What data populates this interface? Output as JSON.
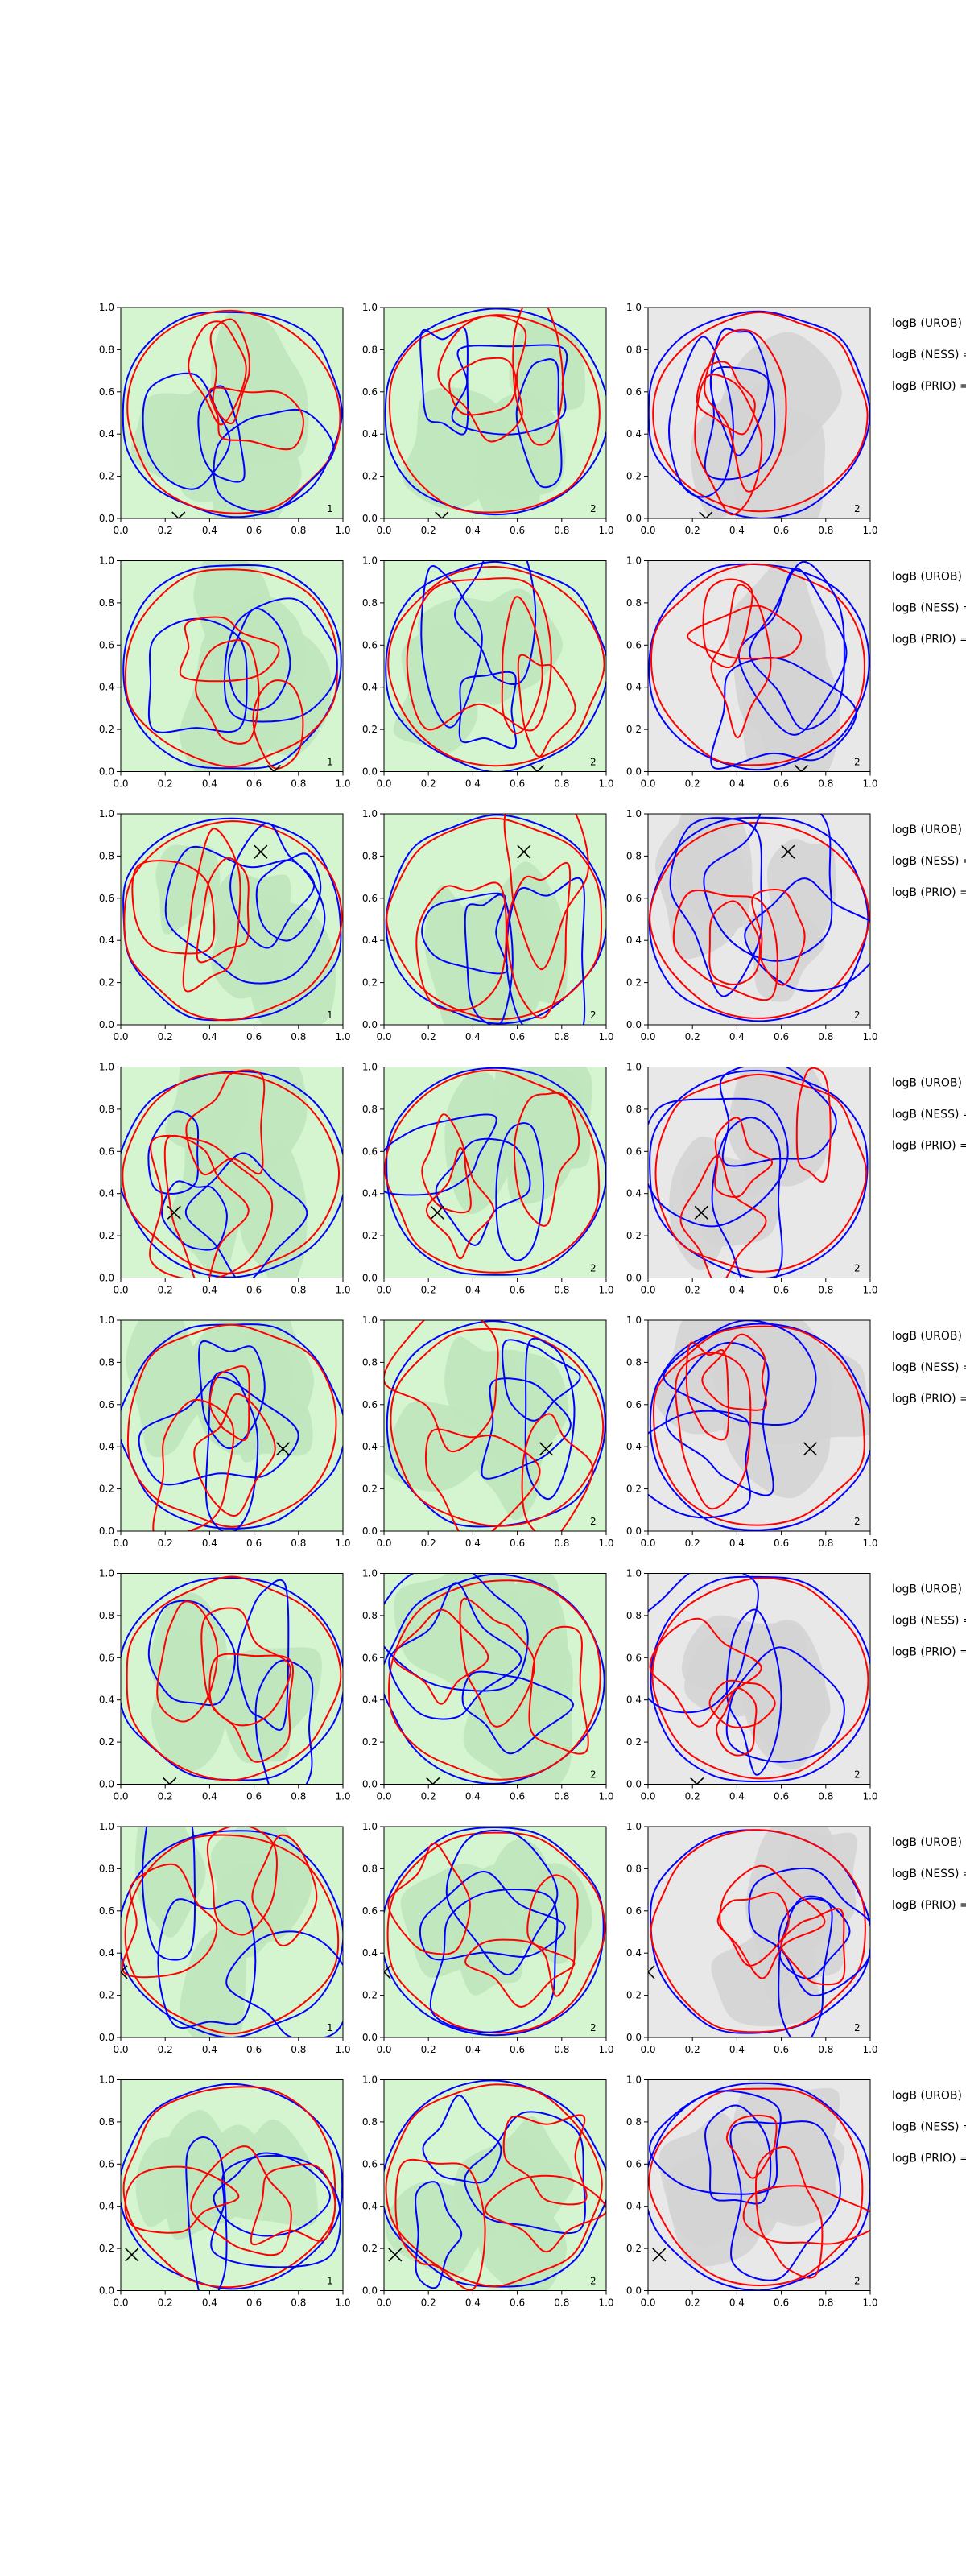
{
  "chart_data": {
    "type": "contour",
    "layout": {
      "rows": 8,
      "cols": 3
    },
    "xlim": [
      0,
      1
    ],
    "ylim": [
      0,
      1
    ],
    "ticks": [
      "0.0",
      "0.2",
      "0.4",
      "0.6",
      "0.8",
      "1.0"
    ],
    "colors": {
      "contour_a": "#0000ff",
      "contour_b": "#ff0000",
      "fill_green_light": "#d4f5d0",
      "fill_green_mid": "#bfe5bb",
      "fill_gray_light": "#e8e8e8",
      "fill_gray_mid": "#d4d4d4",
      "marker": "#000000"
    },
    "side_labels": [
      "logB (UROB) =",
      "logB (NESS) =",
      "logB (PRIO) ="
    ],
    "rows": [
      {
        "marker": [
          0.26,
          0.0
        ],
        "panels": [
          {
            "bg": "green",
            "label": "1"
          },
          {
            "bg": "green",
            "label": "2"
          },
          {
            "bg": "gray",
            "label": "2"
          }
        ]
      },
      {
        "marker": [
          0.69,
          0.0
        ],
        "panels": [
          {
            "bg": "green",
            "label": "1"
          },
          {
            "bg": "green",
            "label": "2"
          },
          {
            "bg": "gray",
            "label": "2"
          }
        ]
      },
      {
        "marker": [
          0.63,
          0.82
        ],
        "panels": [
          {
            "bg": "green",
            "label": "1"
          },
          {
            "bg": "green",
            "label": "2"
          },
          {
            "bg": "gray",
            "label": "2"
          }
        ]
      },
      {
        "marker": [
          0.24,
          0.31
        ],
        "panels": [
          {
            "bg": "green",
            "label": ""
          },
          {
            "bg": "green",
            "label": "2"
          },
          {
            "bg": "gray",
            "label": "2"
          }
        ]
      },
      {
        "marker": [
          0.73,
          0.39
        ],
        "panels": [
          {
            "bg": "green",
            "label": ""
          },
          {
            "bg": "green",
            "label": "2"
          },
          {
            "bg": "gray",
            "label": "2"
          }
        ]
      },
      {
        "marker": [
          0.22,
          0.0
        ],
        "panels": [
          {
            "bg": "green",
            "label": ""
          },
          {
            "bg": "green",
            "label": "2"
          },
          {
            "bg": "gray",
            "label": "2"
          }
        ]
      },
      {
        "marker": [
          0.0,
          0.31
        ],
        "panels": [
          {
            "bg": "green",
            "label": "1"
          },
          {
            "bg": "green",
            "label": "2"
          },
          {
            "bg": "gray",
            "label": "2"
          }
        ]
      },
      {
        "marker": [
          0.05,
          0.17
        ],
        "panels": [
          {
            "bg": "green",
            "label": "1"
          },
          {
            "bg": "green",
            "label": "2"
          },
          {
            "bg": "gray",
            "label": "2"
          }
        ]
      }
    ]
  }
}
